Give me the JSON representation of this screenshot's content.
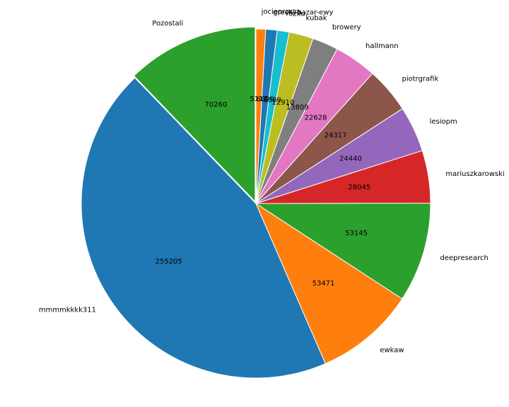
{
  "chart_data": {
    "type": "pie",
    "start_angle_deg": 90,
    "direction": "counterclockwise",
    "explode_first_slice": true,
    "slices": [
      {
        "label": "Pozostali",
        "value": 70260,
        "color": "#2ca02c"
      },
      {
        "label": "mmmmkkkk311",
        "value": 255205,
        "color": "#1f77b4"
      },
      {
        "label": "ewkaw",
        "value": 53471,
        "color": "#ff7f0e"
      },
      {
        "label": "deepresearch",
        "value": 53145,
        "color": "#2ca02c"
      },
      {
        "label": "mariuszkarowski",
        "value": 28045,
        "color": "#d62728"
      },
      {
        "label": "lesiopm",
        "value": 24440,
        "color": "#9467bd"
      },
      {
        "label": "piotrgrafik",
        "value": 24317,
        "color": "#8c564b"
      },
      {
        "label": "hallmann",
        "value": 22628,
        "color": "#e377c2"
      },
      {
        "label": "browery",
        "value": 13809,
        "color": "#7f7f7f"
      },
      {
        "label": "kubak",
        "value": 12910,
        "color": "#bcbd22"
      },
      {
        "label": "rozku",
        "value": 6389,
        "color": "#17becf"
      },
      {
        "label": "grecki-bazar-ewy",
        "value": 6099,
        "color": "#1f77b4"
      },
      {
        "label": "jocieprosza",
        "value": 5117,
        "color": "#ff7f0e"
      }
    ]
  }
}
